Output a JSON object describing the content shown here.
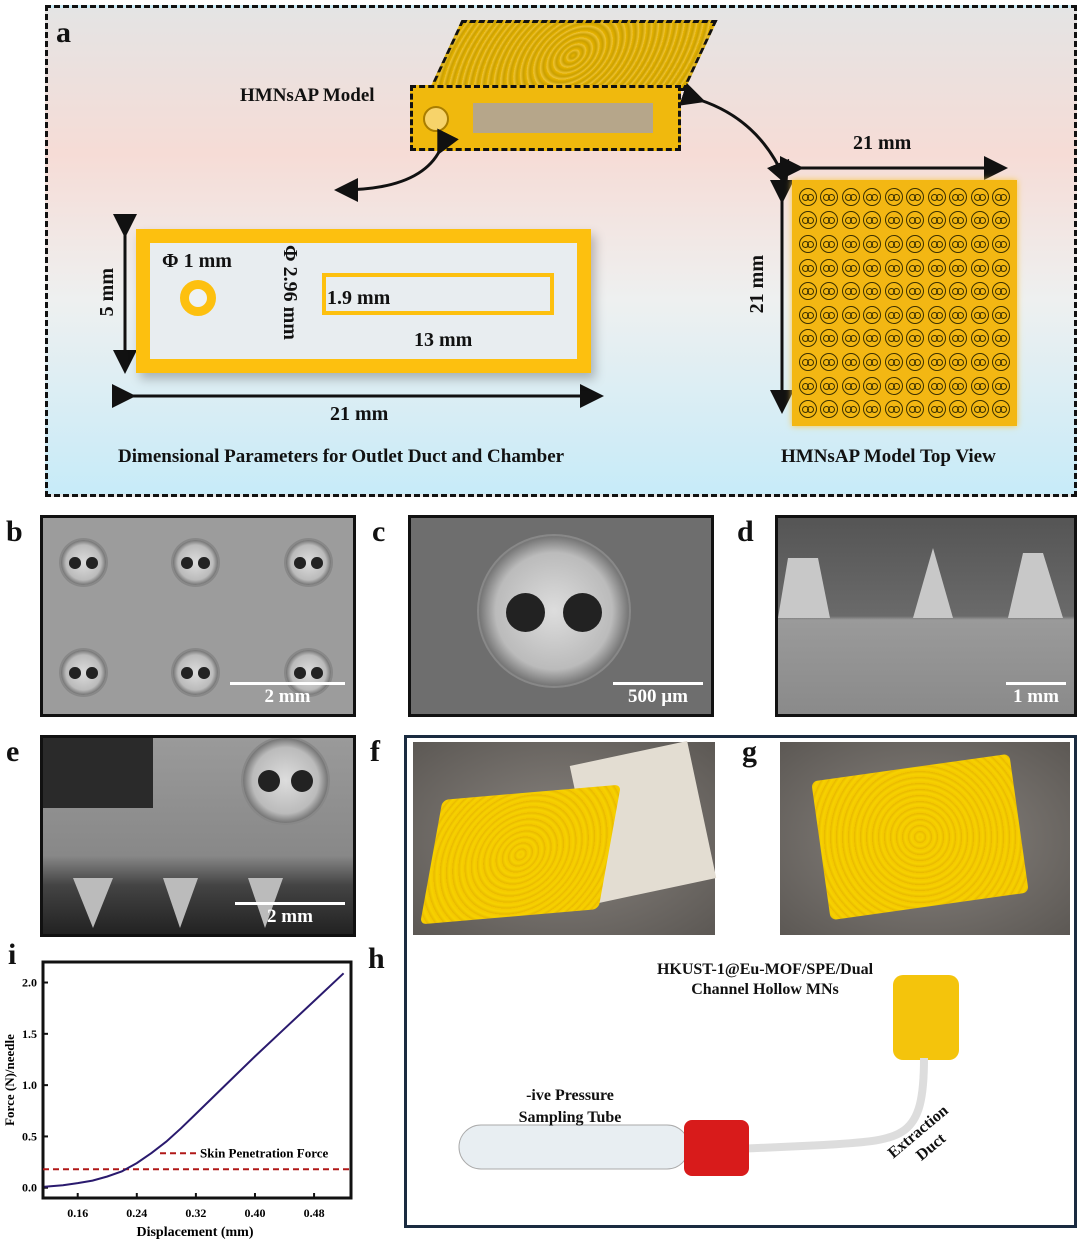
{
  "panel_labels": {
    "a": "a",
    "b": "b",
    "c": "c",
    "d": "d",
    "e": "e",
    "f": "f",
    "g": "g",
    "h": "h",
    "i": "i"
  },
  "panel_a": {
    "model_label": "HMNsAP Model",
    "dim_phi1": "Φ 1 mm",
    "dim_phi296": "Φ 2.96 mm",
    "dim_5mm": "5 mm",
    "dim_19mm": "1.9 mm",
    "dim_13mm": "13 mm",
    "dim_21mm_bottom": "21 mm",
    "dim_21mm_top": "21 mm",
    "dim_21mm_side": "21 mm",
    "caption_left": "Dimensional Parameters for Outlet Duct and Chamber",
    "caption_right": "HMNsAP Model Top View",
    "array_rows": 10,
    "array_cols": 10,
    "accent_color": "#fdc00f"
  },
  "scale_bars": {
    "b": "2 mm",
    "c": "500 µm",
    "d": "1 mm",
    "e": "2 mm"
  },
  "panel_h": {
    "device_label": "HKUST-1@Eu-MOF/SPE/Dual Channel Hollow MNs",
    "tube_label": "-ive Pressure Sampling Tube",
    "duct_label": "Extraction Duct"
  },
  "chart_data": {
    "type": "line",
    "xlabel": "Displacement (mm)",
    "ylabel": "Force (N)/needle",
    "xlim": [
      0.113,
      0.53
    ],
    "ylim": [
      -0.1,
      2.2
    ],
    "xticks": [
      "0.16",
      "0.24",
      "0.32",
      "0.40",
      "0.48"
    ],
    "yticks": [
      "0.0",
      "0.5",
      "1.0",
      "1.5",
      "2.0"
    ],
    "grid": false,
    "series": [
      {
        "color": "#2a1a6e",
        "x": [
          0.115,
          0.14,
          0.16,
          0.18,
          0.2,
          0.22,
          0.24,
          0.26,
          0.28,
          0.3,
          0.32,
          0.36,
          0.4,
          0.44,
          0.48,
          0.52
        ],
        "y": [
          0.01,
          0.025,
          0.045,
          0.07,
          0.11,
          0.16,
          0.24,
          0.34,
          0.45,
          0.58,
          0.72,
          1.0,
          1.28,
          1.55,
          1.82,
          2.09
        ]
      }
    ],
    "threshold": {
      "y": 0.18,
      "label": "Skin Penetration Force",
      "color": "#b01818"
    }
  }
}
